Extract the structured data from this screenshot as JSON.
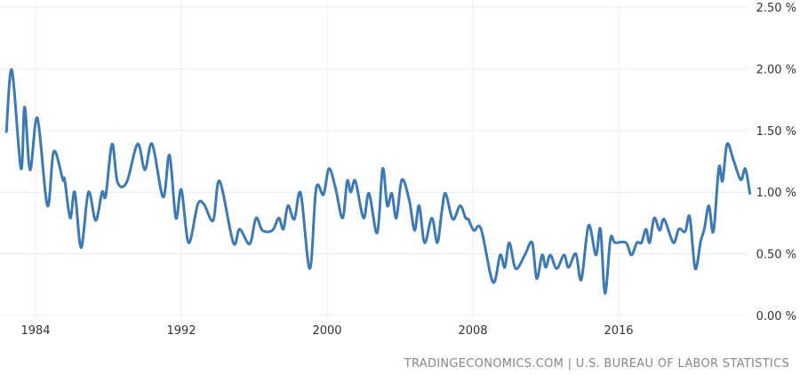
{
  "chart_data": {
    "type": "line",
    "title": "",
    "xlabel": "",
    "ylabel": "",
    "xlim": [
      1982.4,
      2023.2
    ],
    "ylim": [
      0,
      2.5
    ],
    "y_ticks": [
      "0.00 %",
      "0.50 %",
      "1.00 %",
      "1.50 %",
      "2.00 %",
      "2.50 %"
    ],
    "y_tick_values": [
      0,
      0.5,
      1.0,
      1.5,
      2.0,
      2.5
    ],
    "x_ticks": [
      "1984",
      "1992",
      "2000",
      "2008",
      "2016"
    ],
    "x_tick_values": [
      1984,
      1992,
      2000,
      2008,
      2016
    ],
    "grid": true,
    "y_axis_position": "right",
    "line_color": "#3d7ab3",
    "series": [
      {
        "points": [
          [
            1982.4,
            1.49
          ],
          [
            1982.7,
            1.99
          ],
          [
            1983.2,
            1.19
          ],
          [
            1983.4,
            1.69
          ],
          [
            1983.7,
            1.18
          ],
          [
            1984.1,
            1.6
          ],
          [
            1984.65,
            0.89
          ],
          [
            1985.0,
            1.33
          ],
          [
            1985.5,
            1.1
          ],
          [
            1985.6,
            1.1
          ],
          [
            1985.9,
            0.79
          ],
          [
            1986.15,
            1.0
          ],
          [
            1986.5,
            0.55
          ],
          [
            1986.9,
            1.0
          ],
          [
            1987.3,
            0.77
          ],
          [
            1987.65,
            1.0
          ],
          [
            1987.85,
            0.97
          ],
          [
            1988.2,
            1.39
          ],
          [
            1988.5,
            1.08
          ],
          [
            1989.0,
            1.08
          ],
          [
            1989.6,
            1.39
          ],
          [
            1990.0,
            1.18
          ],
          [
            1990.4,
            1.39
          ],
          [
            1991.0,
            0.96
          ],
          [
            1991.35,
            1.3
          ],
          [
            1991.7,
            0.79
          ],
          [
            1992.0,
            1.02
          ],
          [
            1992.4,
            0.59
          ],
          [
            1992.9,
            0.9
          ],
          [
            1993.25,
            0.9
          ],
          [
            1993.75,
            0.77
          ],
          [
            1994.1,
            1.09
          ],
          [
            1994.85,
            0.59
          ],
          [
            1995.2,
            0.7
          ],
          [
            1995.75,
            0.58
          ],
          [
            1996.1,
            0.79
          ],
          [
            1996.45,
            0.69
          ],
          [
            1997.0,
            0.69
          ],
          [
            1997.35,
            0.79
          ],
          [
            1997.6,
            0.7
          ],
          [
            1997.85,
            0.89
          ],
          [
            1998.2,
            0.78
          ],
          [
            1998.55,
            0.99
          ],
          [
            1999.05,
            0.38
          ],
          [
            1999.4,
            1.03
          ],
          [
            1999.8,
            0.98
          ],
          [
            2000.1,
            1.19
          ],
          [
            2000.45,
            1.04
          ],
          [
            2000.85,
            0.79
          ],
          [
            2001.1,
            1.09
          ],
          [
            2001.3,
            1.0
          ],
          [
            2001.55,
            1.09
          ],
          [
            2002.0,
            0.79
          ],
          [
            2002.3,
            0.99
          ],
          [
            2002.75,
            0.67
          ],
          [
            2003.05,
            1.19
          ],
          [
            2003.3,
            0.89
          ],
          [
            2003.55,
            0.99
          ],
          [
            2003.8,
            0.79
          ],
          [
            2004.1,
            1.1
          ],
          [
            2004.5,
            0.94
          ],
          [
            2004.8,
            0.69
          ],
          [
            2005.05,
            0.89
          ],
          [
            2005.35,
            0.59
          ],
          [
            2005.75,
            0.79
          ],
          [
            2006.05,
            0.59
          ],
          [
            2006.3,
            0.85
          ],
          [
            2006.5,
            0.99
          ],
          [
            2006.9,
            0.78
          ],
          [
            2007.3,
            0.89
          ],
          [
            2007.6,
            0.79
          ],
          [
            2007.75,
            0.78
          ],
          [
            2008.05,
            0.69
          ],
          [
            2008.45,
            0.7
          ],
          [
            2009.1,
            0.27
          ],
          [
            2009.5,
            0.49
          ],
          [
            2009.75,
            0.39
          ],
          [
            2010.0,
            0.59
          ],
          [
            2010.35,
            0.38
          ],
          [
            2010.85,
            0.49
          ],
          [
            2011.25,
            0.59
          ],
          [
            2011.5,
            0.3
          ],
          [
            2011.8,
            0.49
          ],
          [
            2012.0,
            0.39
          ],
          [
            2012.25,
            0.49
          ],
          [
            2012.6,
            0.38
          ],
          [
            2013.0,
            0.49
          ],
          [
            2013.25,
            0.39
          ],
          [
            2013.65,
            0.5
          ],
          [
            2013.95,
            0.29
          ],
          [
            2014.35,
            0.73
          ],
          [
            2014.75,
            0.49
          ],
          [
            2015.0,
            0.7
          ],
          [
            2015.25,
            0.18
          ],
          [
            2015.55,
            0.62
          ],
          [
            2015.8,
            0.59
          ],
          [
            2016.4,
            0.59
          ],
          [
            2016.7,
            0.49
          ],
          [
            2017.0,
            0.59
          ],
          [
            2017.25,
            0.59
          ],
          [
            2017.5,
            0.7
          ],
          [
            2017.7,
            0.59
          ],
          [
            2017.95,
            0.79
          ],
          [
            2018.25,
            0.69
          ],
          [
            2018.5,
            0.78
          ],
          [
            2019.0,
            0.59
          ],
          [
            2019.3,
            0.7
          ],
          [
            2019.65,
            0.68
          ],
          [
            2019.9,
            0.8
          ],
          [
            2020.2,
            0.38
          ],
          [
            2020.5,
            0.6
          ],
          [
            2020.7,
            0.7
          ],
          [
            2020.95,
            0.89
          ],
          [
            2021.2,
            0.68
          ],
          [
            2021.5,
            1.2
          ],
          [
            2021.7,
            1.09
          ],
          [
            2021.95,
            1.39
          ],
          [
            2022.3,
            1.26
          ],
          [
            2022.7,
            1.1
          ],
          [
            2022.95,
            1.19
          ],
          [
            2023.2,
            0.99
          ]
        ]
      }
    ]
  },
  "footer": {
    "source": "TRADINGECONOMICS.COM | U.S. BUREAU OF LABOR STATISTICS"
  }
}
